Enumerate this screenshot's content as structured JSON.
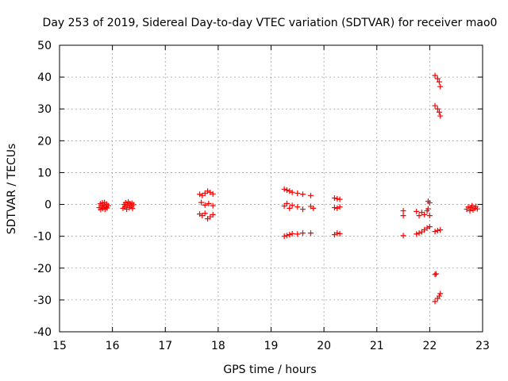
{
  "chart_data": {
    "type": "scatter",
    "title": "Day 253 of 2019, Sidereal Day-to-day VTEC variation (SDTVAR) for receiver mao0",
    "xlabel": "GPS time / hours",
    "ylabel": "SDTVAR / TECUs",
    "xlim": [
      15,
      23
    ],
    "ylim": [
      -40,
      50
    ],
    "xticks": [
      15,
      16,
      17,
      18,
      19,
      20,
      21,
      22,
      23
    ],
    "yticks": [
      -40,
      -30,
      -20,
      -10,
      0,
      10,
      20,
      30,
      40,
      50
    ],
    "grid": true,
    "marker": "+",
    "series": [
      {
        "name": "SDTVAR",
        "color": "#ff0000",
        "points": [
          [
            15.75,
            -1.0
          ],
          [
            15.77,
            0.2
          ],
          [
            15.78,
            -1.6
          ],
          [
            15.8,
            -0.5
          ],
          [
            15.81,
            0.5
          ],
          [
            15.82,
            -1.3
          ],
          [
            15.84,
            -0.2
          ],
          [
            15.85,
            0.6
          ],
          [
            15.86,
            -1.5
          ],
          [
            15.88,
            -0.8
          ],
          [
            15.89,
            0.1
          ],
          [
            15.9,
            -1.1
          ],
          [
            15.92,
            -0.4
          ],
          [
            16.2,
            -1.2
          ],
          [
            16.22,
            0.0
          ],
          [
            16.24,
            -0.8
          ],
          [
            16.25,
            0.5
          ],
          [
            16.27,
            -1.5
          ],
          [
            16.28,
            -0.3
          ],
          [
            16.3,
            0.8
          ],
          [
            16.32,
            -1.0
          ],
          [
            16.33,
            0.2
          ],
          [
            16.35,
            -0.6
          ],
          [
            16.37,
            0.4
          ],
          [
            16.38,
            -1.3
          ],
          [
            16.4,
            -0.1
          ],
          [
            17.65,
            3.2
          ],
          [
            17.7,
            2.8
          ],
          [
            17.75,
            3.5
          ],
          [
            17.8,
            4.2
          ],
          [
            17.85,
            3.8
          ],
          [
            17.9,
            3.3
          ],
          [
            17.68,
            0.6
          ],
          [
            17.75,
            -0.2
          ],
          [
            17.82,
            0.3
          ],
          [
            17.9,
            -0.4
          ],
          [
            17.65,
            -3.0
          ],
          [
            17.7,
            -3.5
          ],
          [
            17.75,
            -2.8
          ],
          [
            17.8,
            -4.5
          ],
          [
            17.85,
            -3.9
          ],
          [
            17.9,
            -3.2
          ],
          [
            19.25,
            4.8
          ],
          [
            19.3,
            4.5
          ],
          [
            19.35,
            4.2
          ],
          [
            19.4,
            3.8
          ],
          [
            19.5,
            3.5
          ],
          [
            19.6,
            3.2
          ],
          [
            19.75,
            2.8
          ],
          [
            19.25,
            -0.5
          ],
          [
            19.3,
            0.3
          ],
          [
            19.35,
            -1.2
          ],
          [
            19.4,
            -0.3
          ],
          [
            19.5,
            -0.8
          ],
          [
            19.6,
            -1.5
          ],
          [
            19.75,
            -0.6
          ],
          [
            19.8,
            -1.2
          ],
          [
            19.25,
            -10.0
          ],
          [
            19.3,
            -9.8
          ],
          [
            19.35,
            -9.5
          ],
          [
            19.4,
            -9.2
          ],
          [
            19.5,
            -9.3
          ],
          [
            19.6,
            -9.0
          ],
          [
            19.75,
            -9.0
          ],
          [
            20.2,
            2.0
          ],
          [
            20.25,
            1.8
          ],
          [
            20.3,
            1.6
          ],
          [
            20.2,
            -1.0
          ],
          [
            20.25,
            -1.2
          ],
          [
            20.3,
            -0.8
          ],
          [
            20.2,
            -9.5
          ],
          [
            20.25,
            -9.0
          ],
          [
            20.3,
            -9.2
          ],
          [
            21.5,
            -2.0
          ],
          [
            21.5,
            -3.5
          ],
          [
            21.5,
            -9.8
          ],
          [
            21.75,
            -9.3
          ],
          [
            21.8,
            -9.0
          ],
          [
            21.85,
            -8.6
          ],
          [
            21.9,
            -8.0
          ],
          [
            21.95,
            -7.4
          ],
          [
            22.0,
            -7.0
          ],
          [
            21.75,
            -2.2
          ],
          [
            21.8,
            -3.5
          ],
          [
            21.85,
            -2.5
          ],
          [
            21.9,
            -3.2
          ],
          [
            21.95,
            -2.0
          ],
          [
            22.0,
            -3.5
          ],
          [
            21.97,
            -1.4
          ],
          [
            21.97,
            1.0
          ],
          [
            22.0,
            0.5
          ],
          [
            22.1,
            40.5
          ],
          [
            22.15,
            39.5
          ],
          [
            22.18,
            38.5
          ],
          [
            22.2,
            37.0
          ],
          [
            22.1,
            31.0
          ],
          [
            22.15,
            30.0
          ],
          [
            22.18,
            29.0
          ],
          [
            22.2,
            27.8
          ],
          [
            22.1,
            -22.0
          ],
          [
            22.12,
            -21.8
          ],
          [
            22.1,
            -30.5
          ],
          [
            22.15,
            -29.5
          ],
          [
            22.18,
            -28.8
          ],
          [
            22.2,
            -28.0
          ],
          [
            22.1,
            -8.5
          ],
          [
            22.15,
            -8.2
          ],
          [
            22.2,
            -8.0
          ],
          [
            22.7,
            -1.5
          ],
          [
            22.73,
            -0.8
          ],
          [
            22.76,
            -2.0
          ],
          [
            22.78,
            -1.0
          ],
          [
            22.8,
            -0.4
          ],
          [
            22.82,
            -1.7
          ],
          [
            22.85,
            -1.2
          ],
          [
            22.87,
            -0.6
          ],
          [
            22.9,
            -1.4
          ]
        ]
      }
    ]
  }
}
